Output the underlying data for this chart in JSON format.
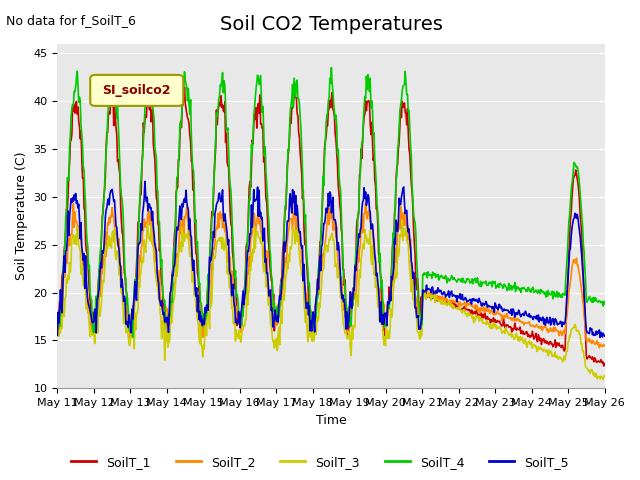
{
  "title": "Soil CO2 Temperatures",
  "xlabel": "Time",
  "ylabel": "Soil Temperature (C)",
  "annotation_text": "No data for f_SoilT_6",
  "legend_label": "SI_soilco2",
  "ylim": [
    10,
    46
  ],
  "yticks": [
    10,
    15,
    20,
    25,
    30,
    35,
    40,
    45
  ],
  "background_color": "#e8e8e8",
  "line_colors": {
    "SoilT_1": "#cc0000",
    "SoilT_2": "#ff8800",
    "SoilT_3": "#cccc00",
    "SoilT_4": "#00cc00",
    "SoilT_5": "#0000cc"
  },
  "series_labels": [
    "SoilT_1",
    "SoilT_2",
    "SoilT_3",
    "SoilT_4",
    "SoilT_5"
  ],
  "x_tick_labels": [
    "May 11",
    "May 12",
    "May 13",
    "May 14",
    "May 15",
    "May 16",
    "May 17",
    "May 18",
    "May 19",
    "May 20",
    "May 21",
    "May 22",
    "May 23",
    "May 24",
    "May 25",
    "May 26"
  ],
  "num_days": 15,
  "active_days": 10,
  "title_fontsize": 14,
  "label_fontsize": 9,
  "tick_fontsize": 8
}
